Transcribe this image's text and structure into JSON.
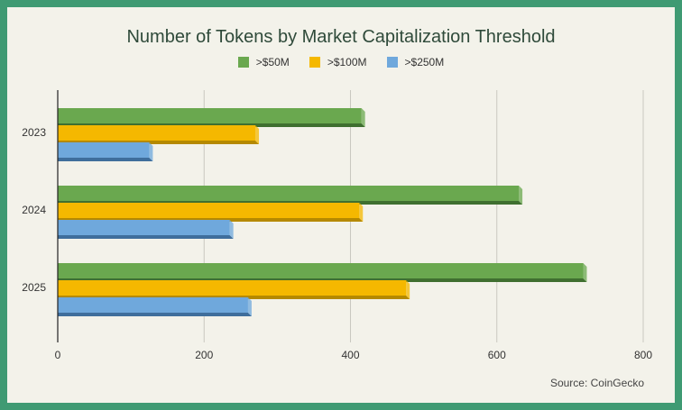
{
  "chart_data": {
    "type": "bar",
    "orientation": "horizontal",
    "title": "Number of Tokens by Market Capitalization Threshold",
    "categories": [
      "2023",
      "2024",
      "2025"
    ],
    "series": [
      {
        "name": ">$50M",
        "values": [
          415,
          630,
          718
        ],
        "color": "#6aa84f",
        "dark": "#3f6f30"
      },
      {
        "name": ">$100M",
        "values": [
          270,
          412,
          476
        ],
        "color": "#f5b800",
        "dark": "#b58900"
      },
      {
        "name": ">$250M",
        "values": [
          125,
          235,
          260
        ],
        "color": "#6fa8dc",
        "dark": "#3f6e9c"
      }
    ],
    "x_ticks": [
      "0",
      "200",
      "400",
      "600",
      "800"
    ],
    "xlim": [
      0,
      800
    ],
    "grid": true,
    "legend_position": "top",
    "source": "Source: CoinGecko"
  }
}
